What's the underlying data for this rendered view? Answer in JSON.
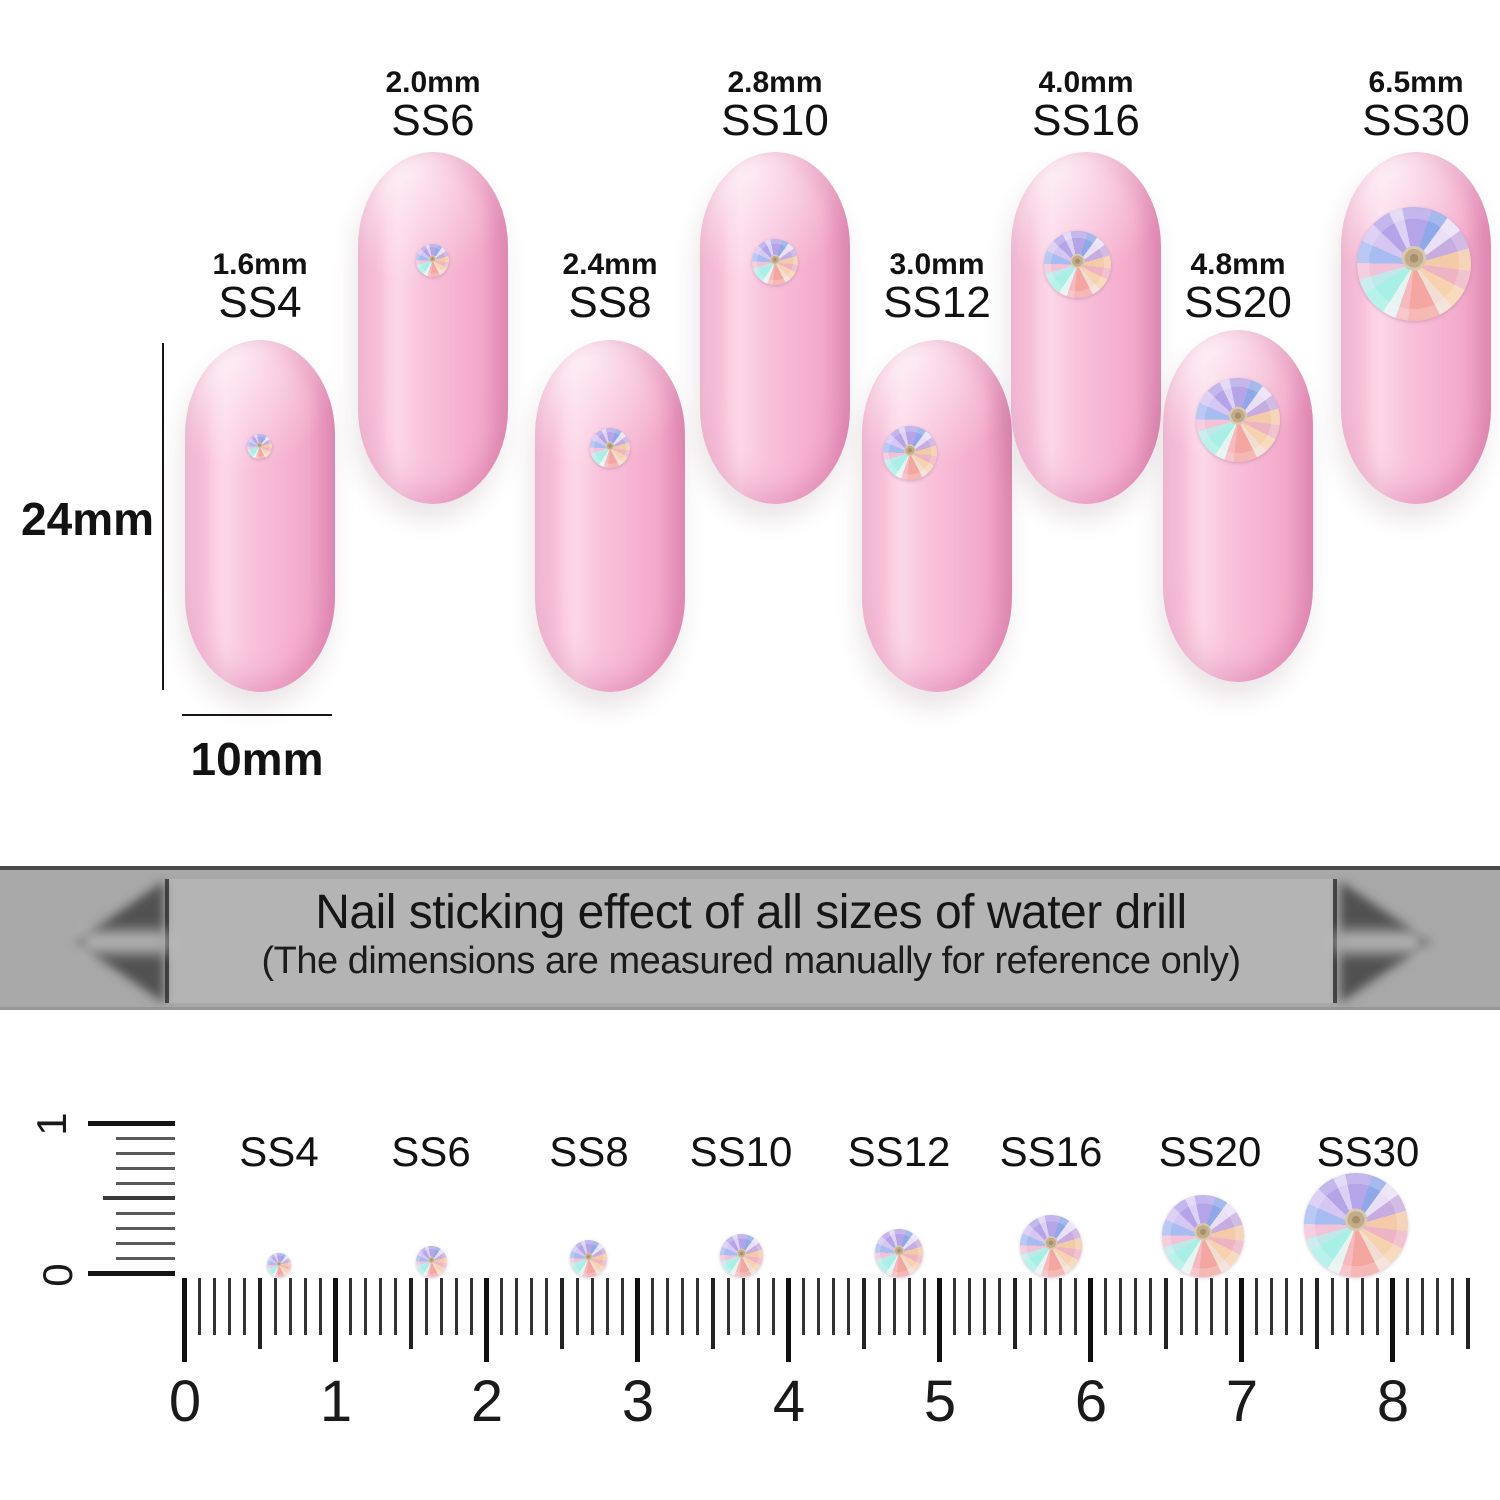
{
  "nails": {
    "height_label": "24mm",
    "width_label": "10mm",
    "items": [
      {
        "ss": "SS4",
        "size": "1.6mm"
      },
      {
        "ss": "SS6",
        "size": "2.0mm"
      },
      {
        "ss": "SS8",
        "size": "2.4mm"
      },
      {
        "ss": "SS10",
        "size": "2.8mm"
      },
      {
        "ss": "SS12",
        "size": "3.0mm"
      },
      {
        "ss": "SS16",
        "size": "4.0mm"
      },
      {
        "ss": "SS20",
        "size": "4.8mm"
      },
      {
        "ss": "SS30",
        "size": "6.5mm"
      }
    ]
  },
  "banner": {
    "title": "Nail sticking effect of all sizes of water drill",
    "subtitle": "(The dimensions are measured manually for reference only)"
  },
  "ruler": {
    "ss_labels": [
      "SS4",
      "SS6",
      "SS8",
      "SS10",
      "SS12",
      "SS16",
      "SS20",
      "SS30"
    ],
    "unit_numbers": [
      "0",
      "1",
      "2",
      "3",
      "4",
      "5",
      "6",
      "7",
      "8"
    ],
    "vertical_numbers": [
      "1",
      "0"
    ]
  },
  "colors": {
    "nail_pink": "#f6b5d2",
    "nail_highlight": "#fcd7e7",
    "banner_gray": "#a8a8a8",
    "banner_panel_gray": "#b4b4b4",
    "text_dark": "#121212",
    "gem_lavender": "#b5a5e8",
    "gem_cyan": "#a8efe6",
    "gem_salmon": "#f4a7a1",
    "gem_peach": "#f3cba8",
    "gem_hub_tan": "#c2ac8c"
  }
}
